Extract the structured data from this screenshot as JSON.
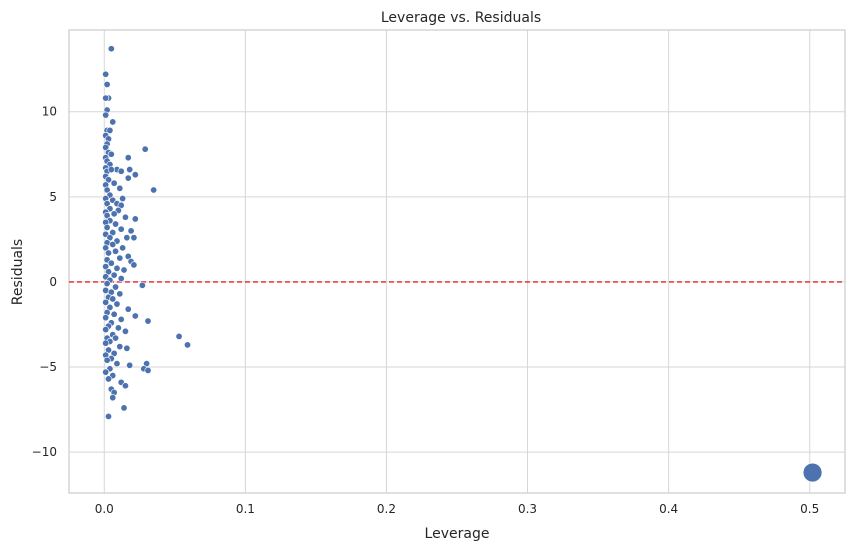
{
  "chart_data": {
    "type": "scatter",
    "title": "Leverage vs. Residuals",
    "xlabel": "Leverage",
    "ylabel": "Residuals",
    "xlim": [
      -0.025,
      0.525
    ],
    "ylim": [
      -12.4,
      14.8
    ],
    "xticks": [
      0.0,
      0.1,
      0.2,
      0.3,
      0.4,
      0.5
    ],
    "xtick_labels": [
      "0.0",
      "0.1",
      "0.2",
      "0.3",
      "0.4",
      "0.5"
    ],
    "yticks": [
      -10,
      -5,
      0,
      5,
      10
    ],
    "ytick_labels": [
      "−10",
      "−5",
      "0",
      "5",
      "10"
    ],
    "grid": true,
    "reference_line": {
      "y": 0,
      "color": "#e0252b",
      "style": "dashed"
    },
    "point_color": "#4c72b0",
    "points": [
      [
        0.005,
        13.7
      ],
      [
        0.001,
        12.2
      ],
      [
        0.002,
        11.6
      ],
      [
        0.003,
        10.8
      ],
      [
        0.001,
        10.8
      ],
      [
        0.002,
        10.1
      ],
      [
        0.001,
        9.8
      ],
      [
        0.006,
        9.4
      ],
      [
        0.002,
        8.9
      ],
      [
        0.004,
        8.9
      ],
      [
        0.001,
        8.6
      ],
      [
        0.003,
        8.4
      ],
      [
        0.002,
        8.1
      ],
      [
        0.001,
        7.9
      ],
      [
        0.029,
        7.8
      ],
      [
        0.003,
        7.6
      ],
      [
        0.005,
        7.5
      ],
      [
        0.001,
        7.3
      ],
      [
        0.017,
        7.3
      ],
      [
        0.002,
        7.1
      ],
      [
        0.004,
        6.9
      ],
      [
        0.001,
        6.7
      ],
      [
        0.009,
        6.6
      ],
      [
        0.012,
        6.5
      ],
      [
        0.002,
        6.5
      ],
      [
        0.005,
        6.6
      ],
      [
        0.018,
        6.6
      ],
      [
        0.022,
        6.3
      ],
      [
        0.001,
        6.2
      ],
      [
        0.003,
        6.0
      ],
      [
        0.017,
        6.1
      ],
      [
        0.007,
        5.8
      ],
      [
        0.001,
        5.7
      ],
      [
        0.011,
        5.5
      ],
      [
        0.035,
        5.4
      ],
      [
        0.002,
        5.4
      ],
      [
        0.004,
        5.1
      ],
      [
        0.001,
        4.9
      ],
      [
        0.013,
        4.9
      ],
      [
        0.006,
        4.8
      ],
      [
        0.009,
        4.6
      ],
      [
        0.002,
        4.6
      ],
      [
        0.012,
        4.5
      ],
      [
        0.004,
        4.3
      ],
      [
        0.001,
        4.1
      ],
      [
        0.01,
        4.2
      ],
      [
        0.007,
        4.0
      ],
      [
        0.002,
        3.9
      ],
      [
        0.015,
        3.8
      ],
      [
        0.022,
        3.7
      ],
      [
        0.004,
        3.6
      ],
      [
        0.001,
        3.5
      ],
      [
        0.008,
        3.4
      ],
      [
        0.002,
        3.2
      ],
      [
        0.012,
        3.1
      ],
      [
        0.019,
        3.0
      ],
      [
        0.006,
        2.9
      ],
      [
        0.001,
        2.8
      ],
      [
        0.016,
        2.6
      ],
      [
        0.021,
        2.6
      ],
      [
        0.004,
        2.6
      ],
      [
        0.009,
        2.4
      ],
      [
        0.002,
        2.3
      ],
      [
        0.006,
        2.2
      ],
      [
        0.013,
        2.0
      ],
      [
        0.001,
        2.0
      ],
      [
        0.008,
        1.8
      ],
      [
        0.003,
        1.7
      ],
      [
        0.017,
        1.5
      ],
      [
        0.011,
        1.4
      ],
      [
        0.002,
        1.3
      ],
      [
        0.019,
        1.2
      ],
      [
        0.005,
        1.1
      ],
      [
        0.021,
        1.0
      ],
      [
        0.001,
        0.9
      ],
      [
        0.009,
        0.8
      ],
      [
        0.014,
        0.7
      ],
      [
        0.003,
        0.6
      ],
      [
        0.007,
        0.4
      ],
      [
        0.001,
        0.3
      ],
      [
        0.012,
        0.2
      ],
      [
        0.004,
        0.1
      ],
      [
        0.002,
        -0.1
      ],
      [
        0.027,
        -0.2
      ],
      [
        0.008,
        -0.3
      ],
      [
        0.001,
        -0.5
      ],
      [
        0.005,
        -0.6
      ],
      [
        0.011,
        -0.7
      ],
      [
        0.003,
        -0.9
      ],
      [
        0.006,
        -1.0
      ],
      [
        0.001,
        -1.2
      ],
      [
        0.009,
        -1.3
      ],
      [
        0.004,
        -1.5
      ],
      [
        0.017,
        -1.6
      ],
      [
        0.002,
        -1.8
      ],
      [
        0.007,
        -1.9
      ],
      [
        0.022,
        -2.0
      ],
      [
        0.001,
        -2.1
      ],
      [
        0.012,
        -2.2
      ],
      [
        0.005,
        -2.4
      ],
      [
        0.031,
        -2.3
      ],
      [
        0.003,
        -2.6
      ],
      [
        0.01,
        -2.7
      ],
      [
        0.001,
        -2.8
      ],
      [
        0.015,
        -2.9
      ],
      [
        0.006,
        -3.1
      ],
      [
        0.053,
        -3.2
      ],
      [
        0.002,
        -3.3
      ],
      [
        0.008,
        -3.3
      ],
      [
        0.004,
        -3.5
      ],
      [
        0.059,
        -3.7
      ],
      [
        0.001,
        -3.6
      ],
      [
        0.011,
        -3.8
      ],
      [
        0.016,
        -3.9
      ],
      [
        0.003,
        -4.0
      ],
      [
        0.007,
        -4.2
      ],
      [
        0.001,
        -4.3
      ],
      [
        0.005,
        -4.5
      ],
      [
        0.002,
        -4.6
      ],
      [
        0.03,
        -4.8
      ],
      [
        0.009,
        -4.8
      ],
      [
        0.018,
        -4.9
      ],
      [
        0.028,
        -5.1
      ],
      [
        0.031,
        -5.2
      ],
      [
        0.004,
        -5.1
      ],
      [
        0.001,
        -5.3
      ],
      [
        0.006,
        -5.5
      ],
      [
        0.003,
        -5.7
      ],
      [
        0.012,
        -5.9
      ],
      [
        0.015,
        -6.1
      ],
      [
        0.005,
        -6.3
      ],
      [
        0.007,
        -6.5
      ],
      [
        0.006,
        -6.8
      ],
      [
        0.014,
        -7.4
      ],
      [
        0.003,
        -7.9
      ]
    ],
    "highlight_point": {
      "x": 0.502,
      "y": -11.2
    }
  }
}
